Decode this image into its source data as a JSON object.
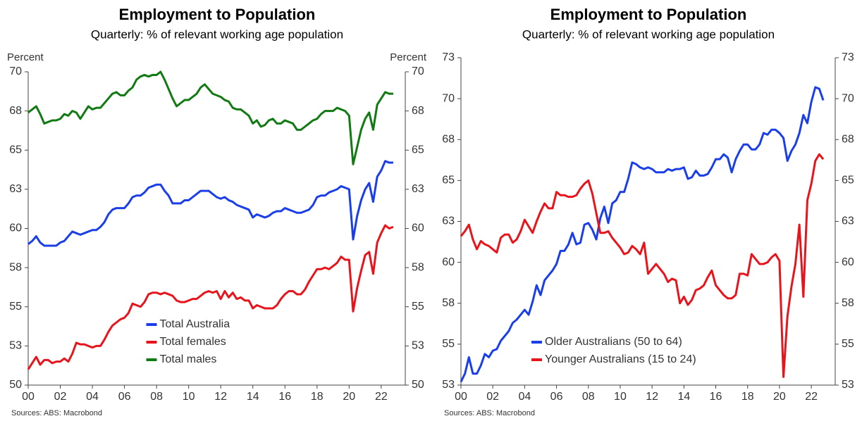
{
  "chart_data": [
    {
      "type": "line",
      "title": "Employment to Population",
      "subtitle": "Quarterly: % of relevant working age population",
      "ylabel": "Percent",
      "y2label": "Percent",
      "source": "Sources: ABS: Macrobond",
      "legend": "lower center",
      "x": [
        2000,
        2000.25,
        2000.5,
        2000.75,
        2001,
        2001.25,
        2001.5,
        2001.75,
        2002,
        2002.25,
        2002.5,
        2002.75,
        2003,
        2003.25,
        2003.5,
        2003.75,
        2004,
        2004.25,
        2004.5,
        2004.75,
        2005,
        2005.25,
        2005.5,
        2005.75,
        2006,
        2006.25,
        2006.5,
        2006.75,
        2007,
        2007.25,
        2007.5,
        2007.75,
        2008,
        2008.25,
        2008.5,
        2008.75,
        2009,
        2009.25,
        2009.5,
        2009.75,
        2010,
        2010.25,
        2010.5,
        2010.75,
        2011,
        2011.25,
        2011.5,
        2011.75,
        2012,
        2012.25,
        2012.5,
        2012.75,
        2013,
        2013.25,
        2013.5,
        2013.75,
        2014,
        2014.25,
        2014.5,
        2014.75,
        2015,
        2015.25,
        2015.5,
        2015.75,
        2016,
        2016.25,
        2016.5,
        2016.75,
        2017,
        2017.25,
        2017.5,
        2017.75,
        2018,
        2018.25,
        2018.5,
        2018.75,
        2019,
        2019.25,
        2019.5,
        2019.75,
        2020,
        2020.25,
        2020.5,
        2020.75,
        2021,
        2021.25,
        2021.5,
        2021.75,
        2022,
        2022.25,
        2022.5,
        2022.75
      ],
      "xlim": [
        2000,
        2023.5
      ],
      "xticks": [
        {
          "value": 2000,
          "label": "00"
        },
        {
          "value": 2002,
          "label": "02"
        },
        {
          "value": 2004,
          "label": "04"
        },
        {
          "value": 2006,
          "label": "06"
        },
        {
          "value": 2008,
          "label": "08"
        },
        {
          "value": 2010,
          "label": "10"
        },
        {
          "value": 2012,
          "label": "12"
        },
        {
          "value": 2014,
          "label": "14"
        },
        {
          "value": 2016,
          "label": "16"
        },
        {
          "value": 2018,
          "label": "18"
        },
        {
          "value": 2020,
          "label": "20"
        },
        {
          "value": 2022,
          "label": "22"
        }
      ],
      "ylim": [
        50,
        70
      ],
      "yticks": [
        50,
        {
          "value": 52.5,
          "label": "53"
        },
        55,
        {
          "value": 57.5,
          "label": "58"
        },
        60,
        {
          "value": 62.5,
          "label": "63"
        },
        65,
        {
          "value": 67.5,
          "label": "68"
        },
        70
      ],
      "series": [
        {
          "name": "Total Australia",
          "color": "#1a3ee8",
          "values": [
            59.0,
            59.2,
            59.5,
            59.1,
            58.9,
            58.9,
            58.9,
            58.9,
            59.1,
            59.2,
            59.5,
            59.8,
            59.7,
            59.6,
            59.7,
            59.8,
            59.9,
            59.9,
            60.1,
            60.4,
            60.9,
            61.2,
            61.3,
            61.3,
            61.3,
            61.6,
            62.0,
            62.1,
            62.1,
            62.3,
            62.6,
            62.7,
            62.8,
            62.8,
            62.4,
            62.1,
            61.6,
            61.6,
            61.6,
            61.8,
            61.8,
            62.0,
            62.2,
            62.4,
            62.4,
            62.4,
            62.2,
            62.0,
            61.9,
            62.0,
            61.8,
            61.7,
            61.5,
            61.4,
            61.3,
            61.2,
            60.7,
            60.9,
            60.8,
            60.7,
            60.8,
            61.0,
            61.1,
            61.1,
            61.3,
            61.2,
            61.1,
            61.0,
            61.0,
            61.1,
            61.2,
            61.5,
            62.0,
            62.1,
            62.1,
            62.3,
            62.4,
            62.5,
            62.7,
            62.6,
            62.5,
            59.3,
            60.8,
            61.8,
            62.5,
            62.9,
            61.7,
            63.3,
            63.7,
            64.3,
            64.2,
            64.2
          ]
        },
        {
          "name": "Total females",
          "color": "#e8141c",
          "values": [
            51.0,
            51.4,
            51.8,
            51.3,
            51.6,
            51.6,
            51.4,
            51.5,
            51.5,
            51.7,
            51.5,
            52.0,
            52.7,
            52.6,
            52.6,
            52.5,
            52.4,
            52.5,
            52.5,
            52.9,
            53.4,
            53.8,
            54.0,
            54.2,
            54.3,
            54.6,
            55.2,
            55.1,
            55.0,
            55.3,
            55.8,
            55.9,
            55.9,
            55.8,
            55.9,
            55.8,
            55.7,
            55.4,
            55.3,
            55.3,
            55.4,
            55.5,
            55.5,
            55.7,
            55.9,
            56.0,
            55.9,
            56.0,
            55.5,
            56.0,
            55.6,
            55.9,
            55.5,
            55.6,
            55.4,
            55.4,
            54.9,
            55.1,
            55.0,
            54.9,
            54.9,
            54.9,
            55.1,
            55.5,
            55.8,
            56.0,
            56.0,
            55.8,
            55.8,
            56.1,
            56.6,
            57.0,
            57.4,
            57.4,
            57.5,
            57.4,
            57.6,
            57.8,
            58.2,
            58.0,
            58.0,
            54.7,
            56.2,
            57.3,
            58.3,
            58.5,
            57.1,
            59.1,
            59.7,
            60.2,
            60.0,
            60.1
          ]
        },
        {
          "name": "Total males",
          "color": "#127a12",
          "values": [
            67.4,
            67.6,
            67.8,
            67.3,
            66.7,
            66.8,
            66.9,
            66.9,
            67.0,
            67.3,
            67.2,
            67.5,
            67.4,
            67.0,
            67.4,
            67.8,
            67.6,
            67.7,
            67.7,
            68.0,
            68.3,
            68.6,
            68.7,
            68.5,
            68.5,
            68.8,
            69.0,
            69.5,
            69.7,
            69.8,
            69.7,
            69.8,
            69.8,
            70.0,
            69.5,
            68.9,
            68.3,
            67.8,
            68.0,
            68.2,
            68.2,
            68.4,
            68.6,
            69.0,
            69.2,
            68.9,
            68.6,
            68.5,
            68.4,
            68.2,
            68.1,
            67.7,
            67.6,
            67.6,
            67.4,
            67.2,
            66.7,
            66.9,
            66.5,
            66.6,
            66.9,
            67.0,
            66.7,
            66.7,
            66.9,
            66.8,
            66.7,
            66.3,
            66.3,
            66.5,
            66.7,
            66.9,
            67.0,
            67.3,
            67.5,
            67.5,
            67.5,
            67.7,
            67.6,
            67.5,
            67.2,
            64.1,
            65.2,
            66.3,
            67.0,
            67.4,
            66.3,
            67.9,
            68.3,
            68.7,
            68.6,
            68.6
          ]
        }
      ]
    },
    {
      "type": "line",
      "title": "Employment to Population",
      "subtitle": "Quarterly: % of relevant working age population",
      "source": "Sources: ABS: Macrobond",
      "legend": "lower left",
      "x": [
        2000,
        2000.25,
        2000.5,
        2000.75,
        2001,
        2001.25,
        2001.5,
        2001.75,
        2002,
        2002.25,
        2002.5,
        2002.75,
        2003,
        2003.25,
        2003.5,
        2003.75,
        2004,
        2004.25,
        2004.5,
        2004.75,
        2005,
        2005.25,
        2005.5,
        2005.75,
        2006,
        2006.25,
        2006.5,
        2006.75,
        2007,
        2007.25,
        2007.5,
        2007.75,
        2008,
        2008.25,
        2008.5,
        2008.75,
        2009,
        2009.25,
        2009.5,
        2009.75,
        2010,
        2010.25,
        2010.5,
        2010.75,
        2011,
        2011.25,
        2011.5,
        2011.75,
        2012,
        2012.25,
        2012.5,
        2012.75,
        2013,
        2013.25,
        2013.5,
        2013.75,
        2014,
        2014.25,
        2014.5,
        2014.75,
        2015,
        2015.25,
        2015.5,
        2015.75,
        2016,
        2016.25,
        2016.5,
        2016.75,
        2017,
        2017.25,
        2017.5,
        2017.75,
        2018,
        2018.25,
        2018.5,
        2018.75,
        2019,
        2019.25,
        2019.5,
        2019.75,
        2020,
        2020.25,
        2020.5,
        2020.75,
        2021,
        2021.25,
        2021.5,
        2021.75,
        2022,
        2022.25,
        2022.5,
        2022.75
      ],
      "xlim": [
        2000,
        2023.5
      ],
      "xticks": [
        {
          "value": 2000,
          "label": "00"
        },
        {
          "value": 2002,
          "label": "02"
        },
        {
          "value": 2004,
          "label": "04"
        },
        {
          "value": 2006,
          "label": "06"
        },
        {
          "value": 2008,
          "label": "08"
        },
        {
          "value": 2010,
          "label": "10"
        },
        {
          "value": 2012,
          "label": "12"
        },
        {
          "value": 2014,
          "label": "14"
        },
        {
          "value": 2016,
          "label": "16"
        },
        {
          "value": 2018,
          "label": "18"
        },
        {
          "value": 2020,
          "label": "20"
        },
        {
          "value": 2022,
          "label": "22"
        }
      ],
      "ylim": [
        52.5,
        72.5
      ],
      "yticks": [
        {
          "value": 52.5,
          "label": "53"
        },
        55,
        {
          "value": 57.5,
          "label": "58"
        },
        60,
        {
          "value": 62.5,
          "label": "63"
        },
        65,
        {
          "value": 67.5,
          "label": "68"
        },
        70,
        {
          "value": 72.5,
          "label": "73"
        }
      ],
      "series": [
        {
          "name": "Older Australians (50 to 64)",
          "color": "#1a3ee8",
          "values": [
            52.7,
            53.2,
            54.2,
            53.2,
            53.2,
            53.7,
            54.4,
            54.2,
            54.6,
            54.7,
            55.2,
            55.5,
            55.8,
            56.3,
            56.5,
            56.8,
            57.1,
            56.8,
            57.6,
            58.6,
            58.0,
            58.9,
            59.2,
            59.5,
            59.9,
            60.7,
            60.7,
            61.1,
            61.8,
            61.1,
            61.2,
            62.3,
            62.4,
            62.0,
            61.4,
            62.7,
            63.4,
            62.4,
            63.6,
            63.8,
            64.3,
            64.3,
            65.1,
            66.1,
            66.0,
            65.8,
            65.7,
            65.8,
            65.7,
            65.5,
            65.5,
            65.5,
            65.7,
            65.6,
            65.7,
            65.7,
            65.8,
            65.1,
            65.2,
            65.6,
            65.3,
            65.3,
            65.4,
            65.8,
            66.3,
            66.3,
            66.6,
            66.4,
            65.5,
            66.3,
            66.8,
            67.2,
            67.2,
            66.9,
            66.9,
            67.2,
            67.9,
            67.8,
            68.1,
            68.1,
            67.9,
            67.6,
            66.2,
            66.8,
            67.2,
            67.9,
            69.0,
            68.5,
            69.8,
            70.7,
            70.6,
            69.9
          ]
        },
        {
          "name": "Younger Australians (15 to 24)",
          "color": "#e8141c",
          "values": [
            61.6,
            61.9,
            62.3,
            61.4,
            60.8,
            61.3,
            61.1,
            61.0,
            60.8,
            60.6,
            61.5,
            61.7,
            61.7,
            61.2,
            61.4,
            61.9,
            62.6,
            62.2,
            61.8,
            62.5,
            63.1,
            63.6,
            63.3,
            63.3,
            64.3,
            64.1,
            64.1,
            64.0,
            64.0,
            64.1,
            64.5,
            64.8,
            65.0,
            64.2,
            63.0,
            61.8,
            61.8,
            61.9,
            61.5,
            61.2,
            60.9,
            60.5,
            60.6,
            61.0,
            60.8,
            60.5,
            61.2,
            59.3,
            59.6,
            59.9,
            59.6,
            59.3,
            58.8,
            59.0,
            58.9,
            57.5,
            57.9,
            57.4,
            57.7,
            58.3,
            58.4,
            58.6,
            59.1,
            59.5,
            58.6,
            58.3,
            58.0,
            57.8,
            57.8,
            58.0,
            59.3,
            59.3,
            59.2,
            60.5,
            60.2,
            59.9,
            59.9,
            60.0,
            60.3,
            60.5,
            60.1,
            53.0,
            56.7,
            58.5,
            59.9,
            62.3,
            57.9,
            63.8,
            64.8,
            66.2,
            66.6,
            66.3
          ]
        }
      ]
    }
  ]
}
